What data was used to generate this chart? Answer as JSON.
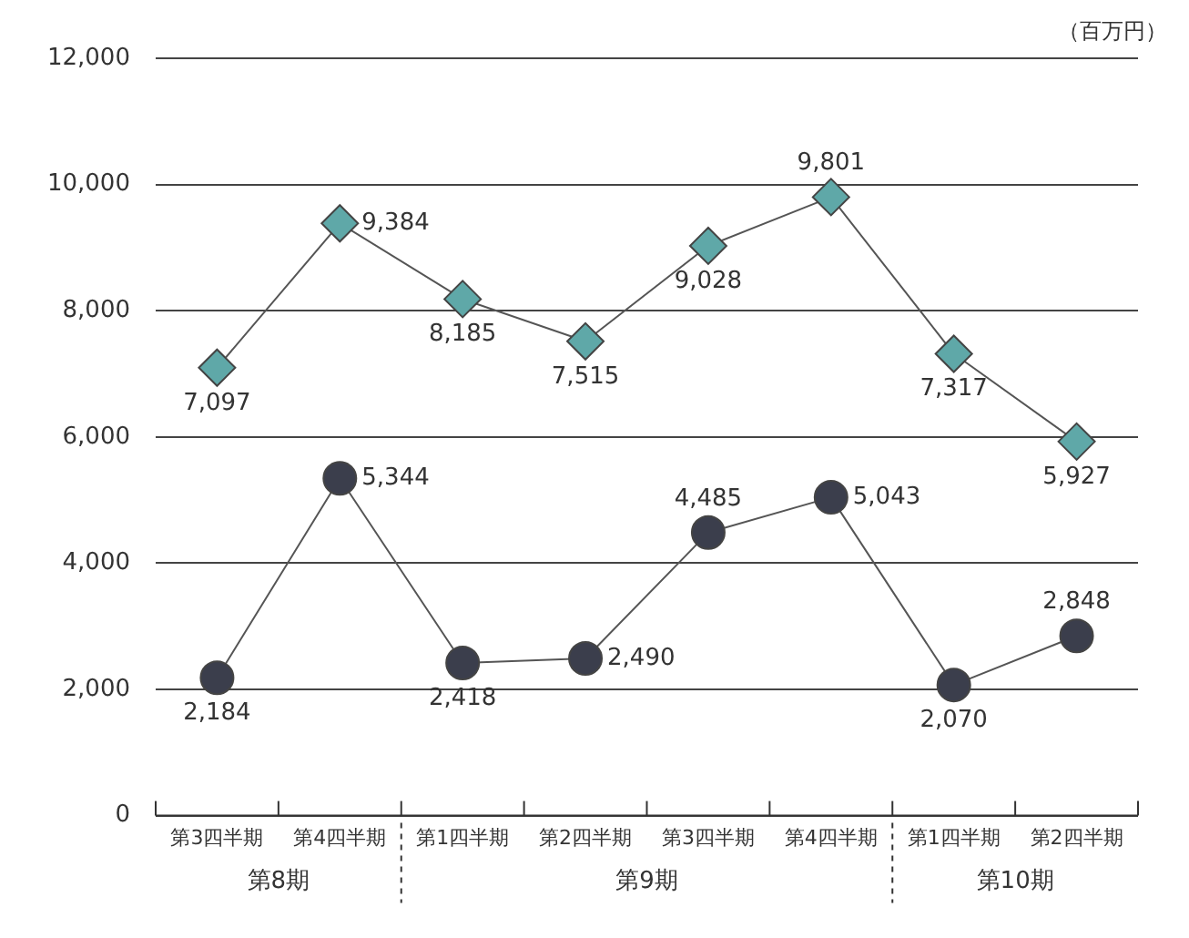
{
  "chart_data": {
    "type": "line",
    "ylabel": "（百万円）",
    "categories": [
      "第3四半期",
      "第4四半期",
      "第1四半期",
      "第2四半期",
      "第3四半期",
      "第4四半期",
      "第1四半期",
      "第2四半期"
    ],
    "series": [
      {
        "color": "#5fa8a8",
        "marker": "diamond",
        "values": [
          7097,
          9384,
          8185,
          7515,
          9028,
          9801,
          7317,
          5927
        ],
        "value_labels": [
          "7,097",
          "9,384",
          "8,185",
          "7,515",
          "9,028",
          "9,801",
          "7,317",
          "5,927"
        ]
      },
      {
        "color": "#3b3e4c",
        "marker": "circle",
        "values": [
          2184,
          5344,
          2418,
          2490,
          4485,
          5043,
          2070,
          2848
        ],
        "value_labels": [
          "2,184",
          "5,344",
          "2,418",
          "2,490",
          "4,485",
          "5,043",
          "2,070",
          "2,848"
        ]
      }
    ],
    "ylim": [
      0,
      12000
    ],
    "yticks": [
      {
        "value": 0,
        "label": "0"
      },
      {
        "value": 2000,
        "label": "2,000"
      },
      {
        "value": 4000,
        "label": "4,000"
      },
      {
        "value": 6000,
        "label": "6,000"
      },
      {
        "value": 8000,
        "label": "8,000"
      },
      {
        "value": 10000,
        "label": "10,000"
      },
      {
        "value": 12000,
        "label": "12,000"
      }
    ],
    "grid": "y",
    "legend": false,
    "line_style": "solid",
    "annotations": [
      "第8期",
      "第9期",
      "第10期"
    ]
  }
}
